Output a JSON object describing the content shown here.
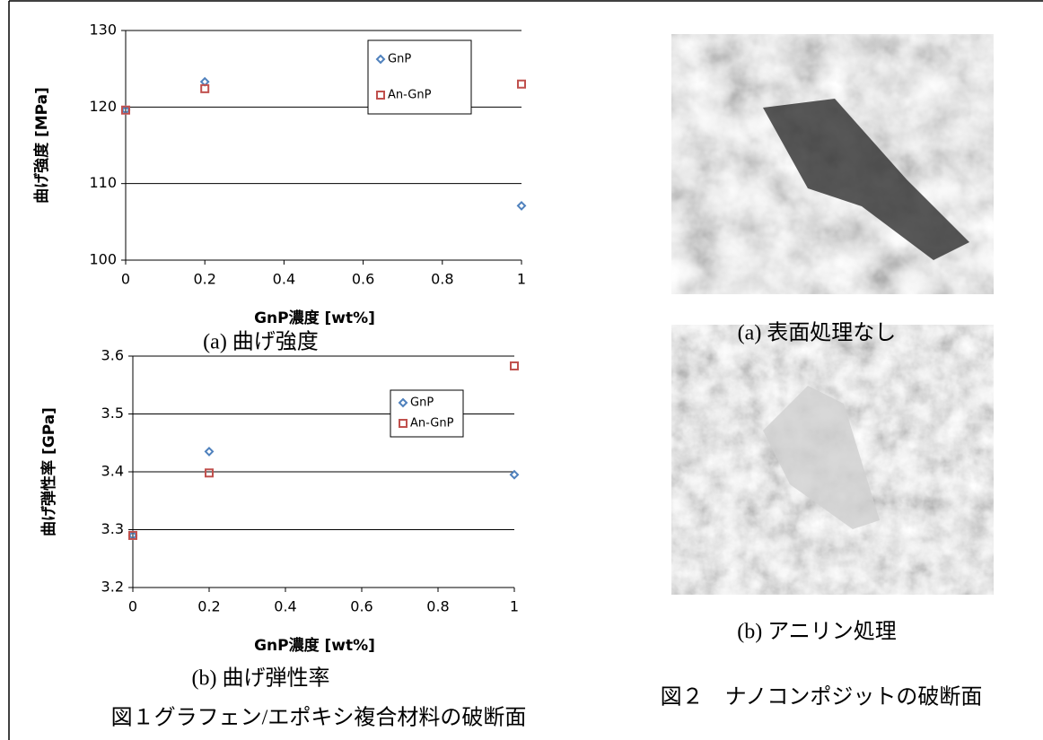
{
  "chart_data": [
    {
      "type": "scatter",
      "x_label": "GnP濃度 [wt%]",
      "y_label": "曲げ強度 [MPa]",
      "x": [
        0,
        0.2,
        1
      ],
      "series": [
        {
          "name": "GnP",
          "color": "#4f81bd",
          "marker": "diamond",
          "values": [
            119.6,
            123.3,
            107.1
          ]
        },
        {
          "name": "An-GnP",
          "color": "#c0504d",
          "marker": "square",
          "values": [
            119.6,
            122.4,
            123.0
          ]
        }
      ],
      "xlim": [
        0,
        1
      ],
      "xticks": [
        0,
        0.2,
        0.4,
        0.6,
        0.8,
        1
      ],
      "ylim": [
        100,
        130
      ],
      "yticks": [
        100,
        110,
        120,
        130
      ],
      "grid": true,
      "caption": "(a) 曲げ強度"
    },
    {
      "type": "scatter",
      "x_label": "GnP濃度 [wt%]",
      "y_label": "曲げ弾性率 [GPa]",
      "x": [
        0,
        0.2,
        1
      ],
      "series": [
        {
          "name": "GnP",
          "color": "#4f81bd",
          "marker": "diamond",
          "values": [
            3.29,
            3.435,
            3.395
          ]
        },
        {
          "name": "An-GnP",
          "color": "#c0504d",
          "marker": "square",
          "values": [
            3.29,
            3.398,
            3.583
          ]
        }
      ],
      "xlim": [
        0,
        1
      ],
      "xticks": [
        0,
        0.2,
        0.4,
        0.6,
        0.8,
        1
      ],
      "ylim": [
        3.2,
        3.6
      ],
      "yticks": [
        3.2,
        3.3,
        3.4,
        3.5,
        3.6
      ],
      "grid": true,
      "caption": "(b) 曲げ弾性率"
    }
  ],
  "figure1_caption": "図１グラフェン/エポキシ複合材料の破断面",
  "figure2": {
    "image_a_caption": "(a) 表面処理なし",
    "image_b_caption": "(b) アニリン処理",
    "caption": "図２　ナノコンポジットの破断面"
  }
}
